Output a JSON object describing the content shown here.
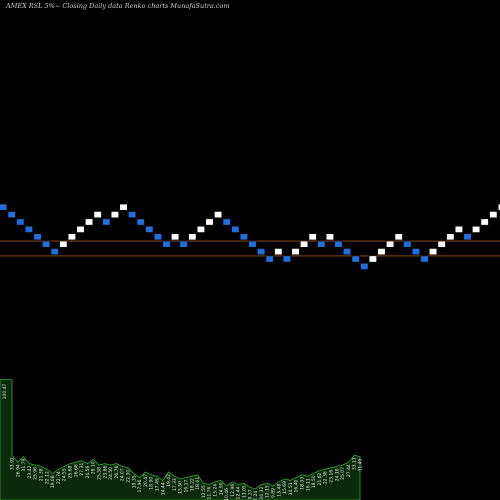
{
  "chart_data": {
    "type": "renko",
    "title": "AMEX  RSL  5%~  Closing Daily data  Renko  charts MunafaSutra.com",
    "colors": {
      "background": "#000000",
      "up_brick": "#ffffff",
      "down_brick": "#1f6fe0",
      "reference_line": "#a0521b",
      "volume_fill": "#0b2a0b",
      "volume_edge": "#33a833"
    },
    "bricks": [
      {
        "level": 3,
        "dir": "down"
      },
      {
        "level": 2,
        "dir": "down"
      },
      {
        "level": 1,
        "dir": "down"
      },
      {
        "level": 0,
        "dir": "down"
      },
      {
        "level": -1,
        "dir": "down"
      },
      {
        "level": -2,
        "dir": "down"
      },
      {
        "level": -3,
        "dir": "down"
      },
      {
        "level": -2,
        "dir": "up"
      },
      {
        "level": -1,
        "dir": "up"
      },
      {
        "level": 0,
        "dir": "up"
      },
      {
        "level": 1,
        "dir": "up"
      },
      {
        "level": 2,
        "dir": "up"
      },
      {
        "level": 1,
        "dir": "down"
      },
      {
        "level": 2,
        "dir": "up"
      },
      {
        "level": 3,
        "dir": "up"
      },
      {
        "level": 2,
        "dir": "down"
      },
      {
        "level": 1,
        "dir": "down"
      },
      {
        "level": 0,
        "dir": "down"
      },
      {
        "level": -1,
        "dir": "down"
      },
      {
        "level": -2,
        "dir": "down"
      },
      {
        "level": -1,
        "dir": "up"
      },
      {
        "level": -2,
        "dir": "down"
      },
      {
        "level": -1,
        "dir": "up"
      },
      {
        "level": 0,
        "dir": "up"
      },
      {
        "level": 1,
        "dir": "up"
      },
      {
        "level": 2,
        "dir": "up"
      },
      {
        "level": 1,
        "dir": "down"
      },
      {
        "level": 0,
        "dir": "down"
      },
      {
        "level": -1,
        "dir": "down"
      },
      {
        "level": -2,
        "dir": "down"
      },
      {
        "level": -3,
        "dir": "down"
      },
      {
        "level": -4,
        "dir": "down"
      },
      {
        "level": -3,
        "dir": "up"
      },
      {
        "level": -4,
        "dir": "down"
      },
      {
        "level": -3,
        "dir": "up"
      },
      {
        "level": -2,
        "dir": "up"
      },
      {
        "level": -1,
        "dir": "up"
      },
      {
        "level": -2,
        "dir": "down"
      },
      {
        "level": -1,
        "dir": "up"
      },
      {
        "level": -2,
        "dir": "down"
      },
      {
        "level": -3,
        "dir": "down"
      },
      {
        "level": -4,
        "dir": "down"
      },
      {
        "level": -5,
        "dir": "down"
      },
      {
        "level": -4,
        "dir": "up"
      },
      {
        "level": -3,
        "dir": "up"
      },
      {
        "level": -2,
        "dir": "up"
      },
      {
        "level": -1,
        "dir": "up"
      },
      {
        "level": -2,
        "dir": "down"
      },
      {
        "level": -3,
        "dir": "down"
      },
      {
        "level": -4,
        "dir": "down"
      },
      {
        "level": -3,
        "dir": "up"
      },
      {
        "level": -2,
        "dir": "up"
      },
      {
        "level": -1,
        "dir": "up"
      },
      {
        "level": 0,
        "dir": "up"
      },
      {
        "level": -1,
        "dir": "down"
      },
      {
        "level": 0,
        "dir": "up"
      },
      {
        "level": 1,
        "dir": "up"
      },
      {
        "level": 2,
        "dir": "up"
      },
      {
        "level": 3,
        "dir": "up"
      },
      {
        "level": 4,
        "dir": "up"
      },
      {
        "level": 3,
        "dir": "down"
      }
    ],
    "reference_levels": [
      -1.5,
      -3.5
    ],
    "volume": {
      "values": [
        32,
        27,
        31,
        26,
        25,
        24,
        22,
        19,
        22,
        24,
        26,
        27,
        28,
        26,
        29,
        25,
        26,
        25,
        26,
        24,
        23,
        19,
        16,
        20,
        18,
        17,
        14,
        20,
        17,
        15,
        16,
        17,
        18,
        12,
        11,
        13,
        14,
        10,
        13,
        11,
        12,
        9,
        8,
        11,
        12,
        10,
        13,
        15,
        14,
        16,
        18,
        17,
        19,
        21,
        22,
        23,
        24,
        25,
        27,
        32,
        31
      ],
      "first_bar_label": "100.47",
      "first_bar_level": 86,
      "labels": [
        "33.92",
        "26.94",
        "31.79",
        "23.42",
        "25.96",
        "21.38",
        "22.12",
        "19.08",
        "22.74",
        "24.55",
        "25.68",
        "26.68",
        "27.31",
        "24.56",
        "28.10",
        "25.58",
        "23.66",
        "24.50",
        "26.76",
        "24.07",
        "22.30",
        "19.35",
        "17.96",
        "20.47",
        "18.90",
        "17.49",
        "14.44",
        "19.42",
        "17.33",
        "15.50",
        "16.17",
        "18.22",
        "18.01",
        "12.55",
        "11.76",
        "13.24",
        "14.90",
        "10.46",
        "12.96",
        "12.44",
        "11.05",
        "9.37",
        "7.24",
        "10.32",
        "12.15",
        "9.89",
        "13.48",
        "15.69",
        "14.51",
        "16.40",
        "18.33",
        "16.11",
        "18.50",
        "21.62",
        "22.38",
        "23.16",
        "24.18",
        "25.07",
        "27.44",
        "33.11",
        "31.49"
      ]
    }
  }
}
